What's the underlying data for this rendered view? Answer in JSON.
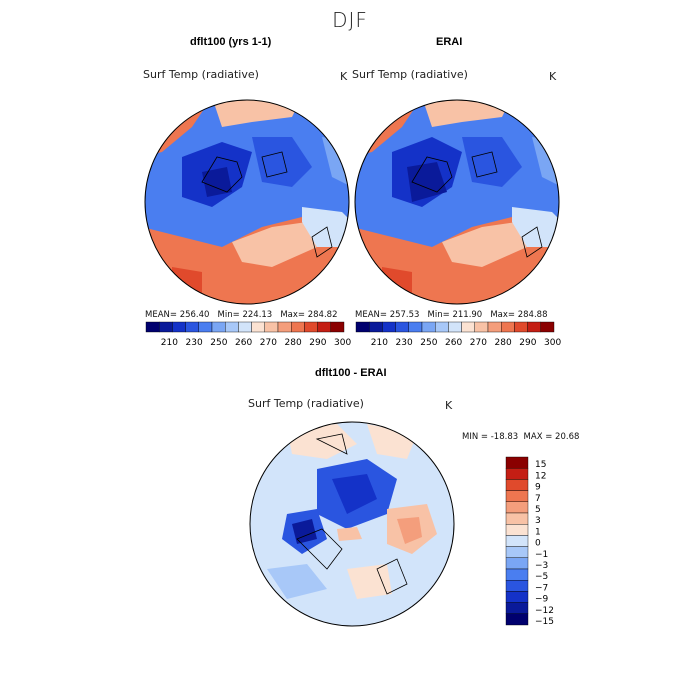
{
  "figure": {
    "title": "DJF"
  },
  "colors": {
    "abs_scale": [
      "#00006e",
      "#0a1a9a",
      "#1432c8",
      "#2a55e0",
      "#4a7ef0",
      "#7aa6f4",
      "#a8c8f8",
      "#d2e4fa",
      "#fbe2d2",
      "#f8c2a6",
      "#f49e7c",
      "#ee7650",
      "#e04a2c",
      "#c41e14",
      "#8a0000"
    ],
    "diff_scale": [
      "#00006e",
      "#0a1a9a",
      "#1432c8",
      "#2a55e0",
      "#4a7ef0",
      "#7aa6f4",
      "#a8c8f8",
      "#d2e4fa",
      "#fbe2d2",
      "#f8c2a6",
      "#f49e7c",
      "#ee7650",
      "#e04a2c",
      "#c41e14",
      "#8a0000"
    ]
  },
  "panels": [
    {
      "title": "dflt100 (yrs 1-1)",
      "variable": "Surf Temp (radiative)",
      "units": "K",
      "stats": {
        "mean": "256.40",
        "min": "224.13",
        "max": "284.82"
      },
      "colorbar_labels": [
        "210",
        "230",
        "250",
        "260",
        "270",
        "280",
        "290",
        "300"
      ]
    },
    {
      "title": "ERAI",
      "variable": "Surf Temp (radiative)",
      "units": "K",
      "stats": {
        "mean": "257.53",
        "min": "211.90",
        "max": "284.88"
      },
      "colorbar_labels": [
        "210",
        "230",
        "250",
        "260",
        "270",
        "280",
        "290",
        "300"
      ]
    }
  ],
  "diff_panel": {
    "title": "dflt100 - ERAI",
    "variable": "Surf Temp (radiative)",
    "units": "K",
    "stats": {
      "min": "-18.83",
      "max": "20.68"
    },
    "colorbar_labels": [
      "15",
      "12",
      "9",
      "7",
      "5",
      "3",
      "1",
      "0",
      "−1",
      "−3",
      "−5",
      "−7",
      "−9",
      "−12",
      "−15"
    ]
  }
}
